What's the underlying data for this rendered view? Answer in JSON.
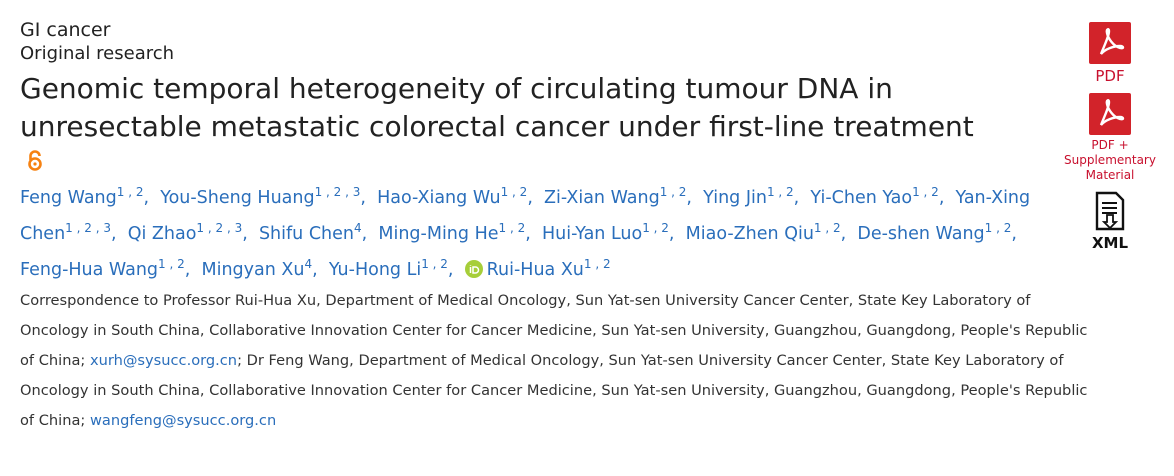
{
  "section": "GI cancer",
  "article_type": "Original research",
  "title": "Genomic temporal heterogeneity of circulating tumour DNA in unresectable metastatic colorectal cancer under first-line treatment",
  "author_separator": ",",
  "authors": [
    {
      "name": "Feng Wang",
      "affiliations": "1 , 2"
    },
    {
      "name": "You-Sheng Huang",
      "affiliations": "1 , 2 , 3"
    },
    {
      "name": "Hao-Xiang Wu",
      "affiliations": "1 , 2"
    },
    {
      "name": "Zi-Xian Wang",
      "affiliations": "1 , 2"
    },
    {
      "name": "Ying Jin",
      "affiliations": "1 , 2"
    },
    {
      "name": "Yi-Chen Yao",
      "affiliations": "1 , 2"
    },
    {
      "name": "Yan-Xing Chen",
      "affiliations": "1 , 2 , 3"
    },
    {
      "name": "Qi Zhao",
      "affiliations": "1 , 2 , 3"
    },
    {
      "name": "Shifu Chen",
      "affiliations": "4"
    },
    {
      "name": "Ming-Ming He",
      "affiliations": "1 , 2"
    },
    {
      "name": "Hui-Yan Luo",
      "affiliations": "1 , 2"
    },
    {
      "name": "Miao-Zhen Qiu",
      "affiliations": "1 , 2"
    },
    {
      "name": "De-shen Wang",
      "affiliations": "1 , 2"
    },
    {
      "name": "Feng-Hua Wang",
      "affiliations": "1 , 2"
    },
    {
      "name": "Mingyan Xu",
      "affiliations": "4"
    },
    {
      "name": "Yu-Hong Li",
      "affiliations": "1 , 2"
    },
    {
      "name": "Rui-Hua Xu",
      "affiliations": "1 , 2",
      "orcid": true
    }
  ],
  "correspondence": {
    "text_1": "Correspondence to Professor Rui-Hua Xu, Department of Medical Oncology, Sun Yat-sen University Cancer Center, State Key Laboratory of Oncology in South China, Collaborative Innovation Center for Cancer Medicine, Sun Yat-sen University, Guangzhou, Guangdong, People's Republic of China;",
    "email_1": "xurh@sysucc.org.cn",
    "text_2": "; Dr Feng Wang, Department of Medical Oncology, Sun Yat-sen University Cancer Center, State Key Laboratory of Oncology in South China, Collaborative Innovation Center for Cancer Medicine, Sun Yat-sen University, Guangzhou, Guangdong, People's Republic of China;",
    "email_2": "wangfeng@sysucc.org.cn"
  },
  "sidebar": {
    "pdf": "PDF",
    "pdf_supplementary": "PDF + Supplementary Material",
    "xml": "XML"
  }
}
